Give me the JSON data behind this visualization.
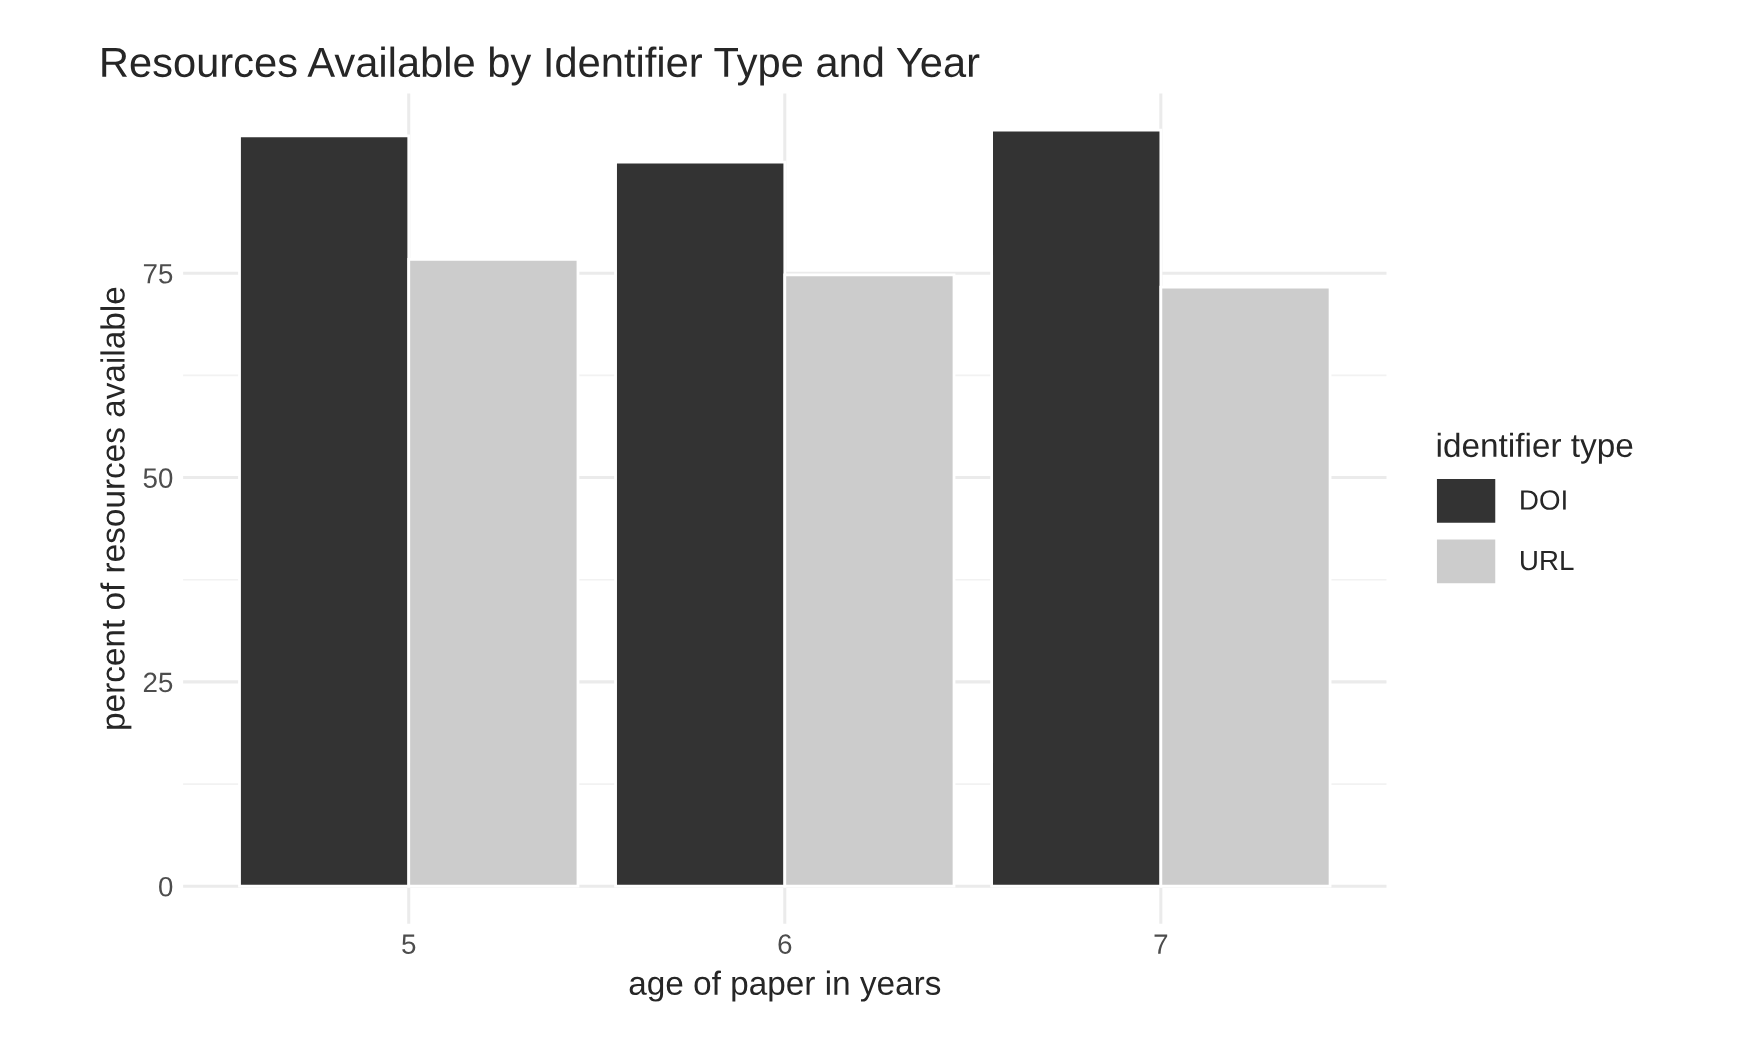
{
  "chart_data": {
    "type": "bar",
    "title": "Resources Available by Identifier Type and Year",
    "xlabel": "age of paper in years",
    "ylabel": "percent of resources available",
    "legend_title": "identifier type",
    "categories": [
      "5",
      "6",
      "7"
    ],
    "series": [
      {
        "name": "DOI",
        "color": "#333333",
        "values": [
          91.8,
          88.6,
          92.5
        ]
      },
      {
        "name": "URL",
        "color": "#cccccc",
        "values": [
          76.7,
          74.8,
          73.3
        ]
      }
    ],
    "ylim": [
      -4.6,
      97
    ],
    "yticks": [
      0,
      25,
      50,
      75
    ],
    "grid": true,
    "legend": "right"
  }
}
